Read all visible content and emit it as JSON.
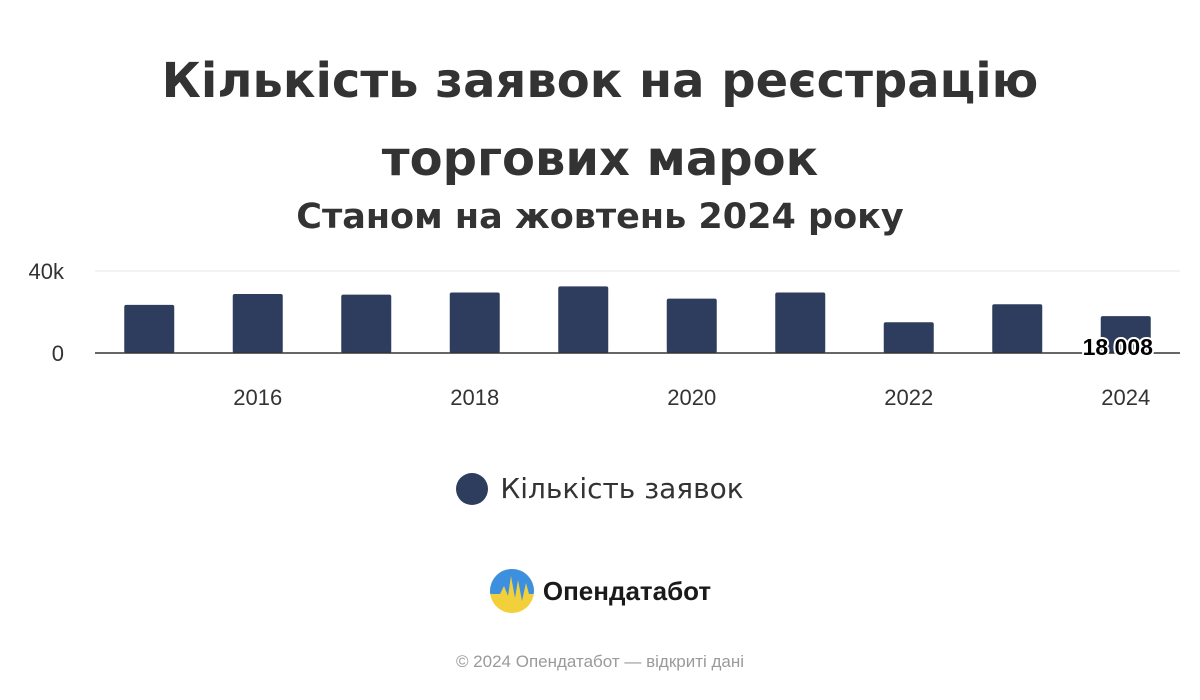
{
  "chart_data": {
    "type": "bar",
    "title": "Кількість заявок на реєстрацію торгових марок",
    "title_lines": [
      "Кількість заявок на реєстрацію",
      "торгових марок"
    ],
    "subtitle": "Станом на жовтень 2024 року",
    "xlabel": "",
    "ylabel": "",
    "x": [
      2015,
      2016,
      2017,
      2018,
      2019,
      2020,
      2021,
      2022,
      2023,
      2024
    ],
    "xtick_labels": [
      "2016",
      "2018",
      "2020",
      "2022",
      "2024"
    ],
    "ytick_labels": [
      "0",
      "40k"
    ],
    "ylim": [
      0,
      40000
    ],
    "grid": true,
    "legend_position": "bottom",
    "series": [
      {
        "name": "Кількість заявок",
        "color": "#2e3d5e",
        "values": [
          23500,
          28800,
          28500,
          29500,
          32500,
          26500,
          29500,
          15000,
          23800,
          18008
        ]
      }
    ],
    "data_labels": [
      {
        "x": 2024,
        "text": "18 008"
      }
    ]
  },
  "brand": {
    "name": "Опендатабот",
    "icon": "opendatabot-logo-icon"
  },
  "footer": {
    "text": "© 2024 Опендатабот — відкриті дані"
  }
}
